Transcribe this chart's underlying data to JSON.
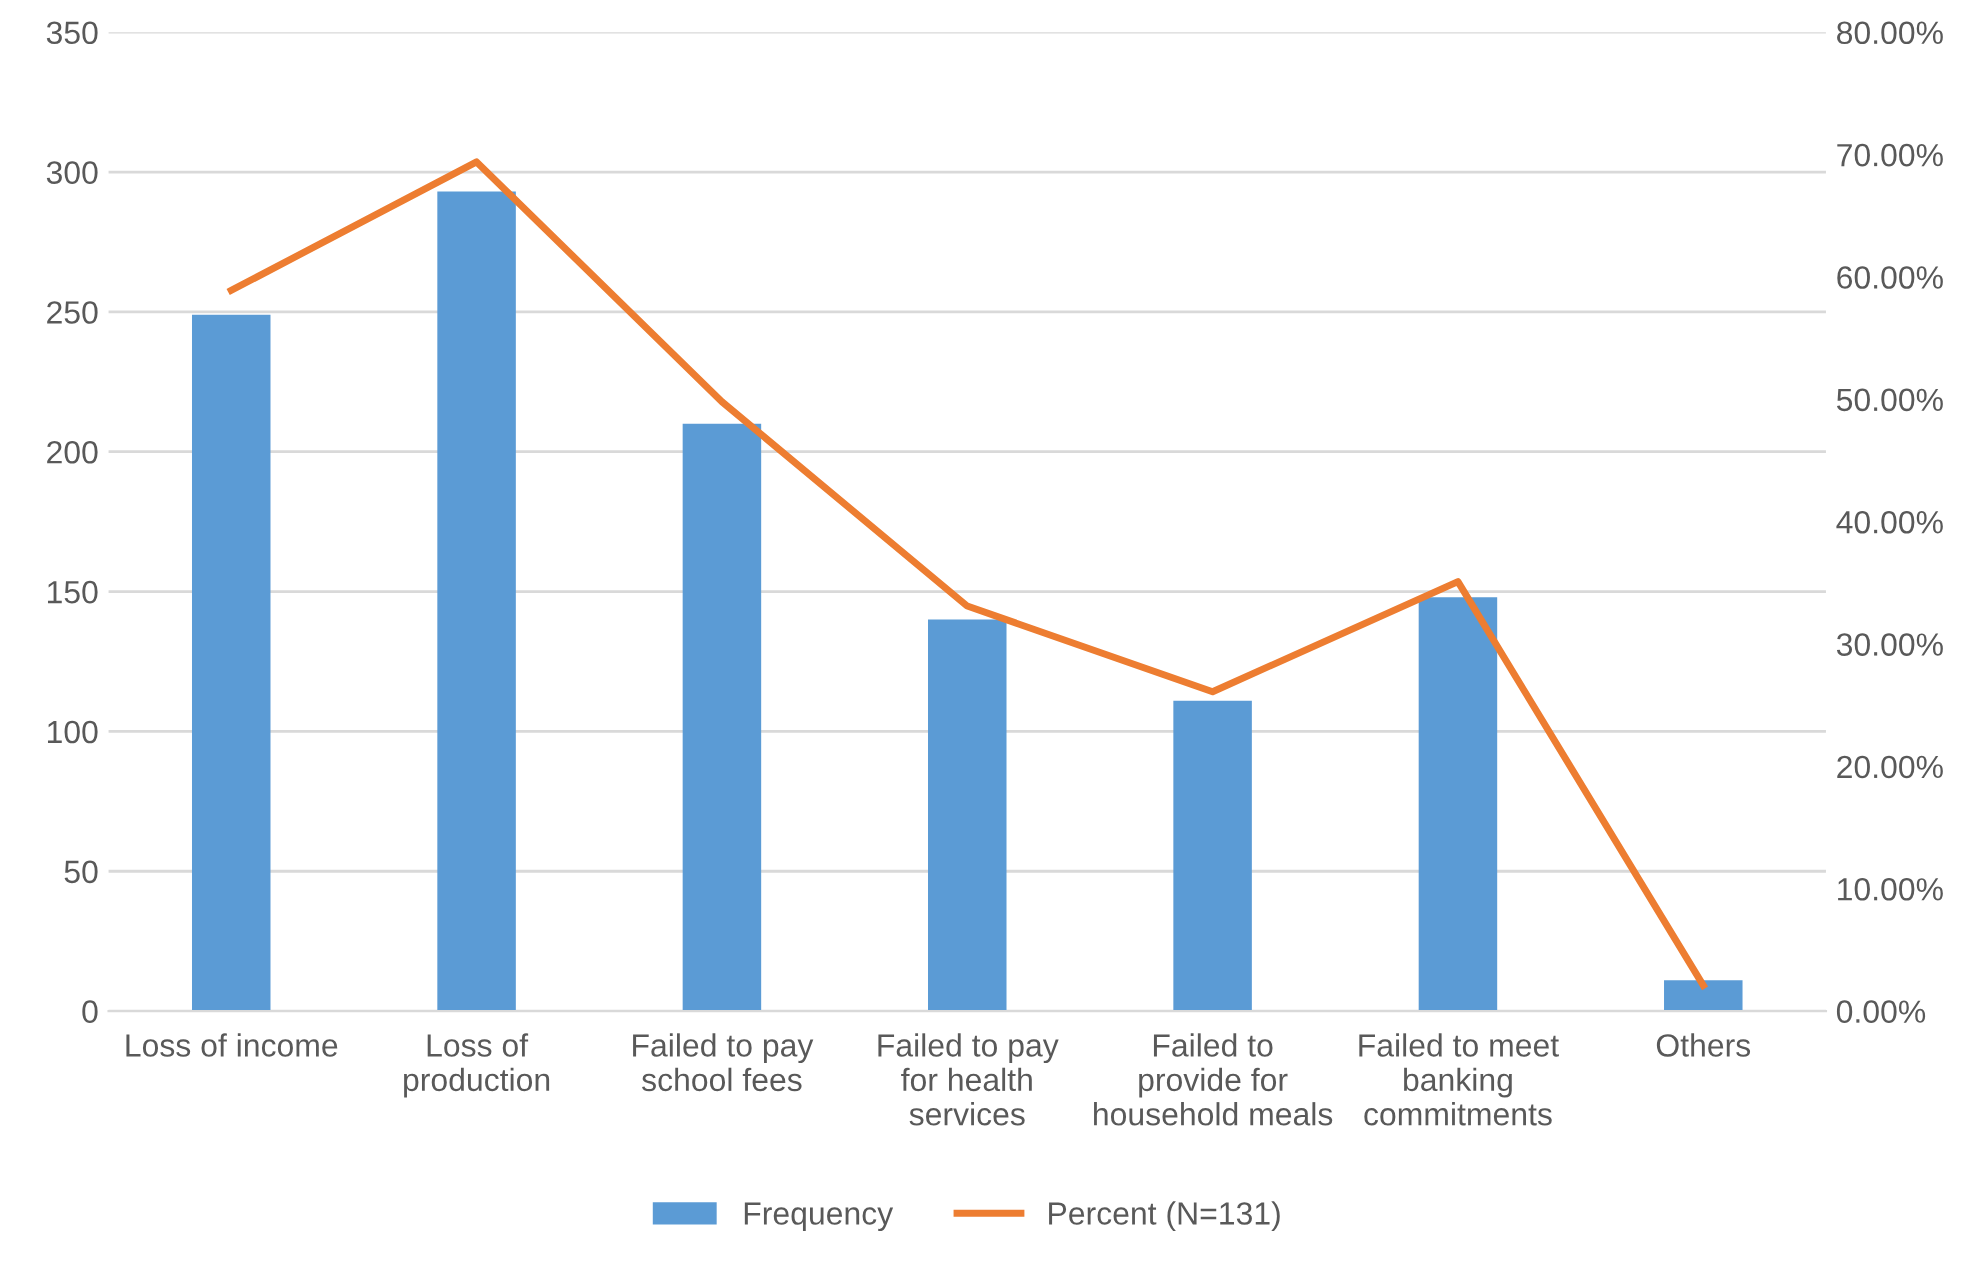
{
  "chart_data": {
    "type": "bar",
    "categories": [
      "Loss of income",
      "Loss of production",
      "Failed to pay school fees",
      "Failed to pay for health services",
      "Failed to provide for household meals",
      "Failed to meet banking commitments",
      "Others"
    ],
    "series": [
      {
        "name": "Frequency",
        "color": "#5b9bd5",
        "values": [
          249,
          293,
          210,
          140,
          111,
          148,
          11
        ]
      },
      {
        "name": "Percent (N=131)",
        "type": "line",
        "axis": "y2",
        "color": "#ed7d31",
        "values": [
          58.9,
          69.4,
          49.8,
          33.1,
          26.1,
          35.1,
          2.1
        ]
      }
    ],
    "ylim": [
      0,
      350
    ],
    "yticks": [
      0,
      50,
      100,
      150,
      200,
      250,
      300,
      350
    ],
    "y2lim": [
      0,
      80
    ],
    "y2ticks": [
      {
        "value": 0,
        "label": "0.00%"
      },
      {
        "value": 10,
        "label": "10.00%"
      },
      {
        "value": 20,
        "label": "20.00%"
      },
      {
        "value": 30,
        "label": "30.00%"
      },
      {
        "value": 40,
        "label": "40.00%"
      },
      {
        "value": 50,
        "label": "50.00%"
      },
      {
        "value": 60,
        "label": "60.00%"
      },
      {
        "value": 70,
        "label": "70.00%"
      },
      {
        "value": 80,
        "label": "80.00%"
      }
    ],
    "grid": "y",
    "legend": "bottom",
    "marker": "none",
    "line_style": "solid"
  }
}
